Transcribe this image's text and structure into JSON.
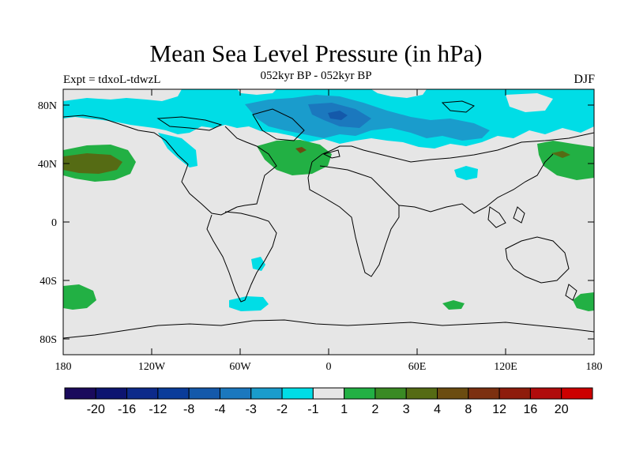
{
  "header": {
    "title": "Mean Sea Level Pressure (in hPa)",
    "experiment": "Expt = tdxoL-tdwzL",
    "subtitle": "052kyr BP - 052kyr BP",
    "season": "DJF"
  },
  "map": {
    "background_color": "#e6e6e6",
    "lat_ticks": [
      "80N",
      "40N",
      "0",
      "40S",
      "80S"
    ],
    "lon_ticks": [
      "180",
      "120W",
      "60W",
      "0",
      "60E",
      "120E",
      "180"
    ]
  },
  "colorbar": {
    "colors": [
      "#1a0a5c",
      "#0d1470",
      "#0d2a8a",
      "#0a3c9a",
      "#1459aa",
      "#1b78be",
      "#1a9ccc",
      "#00dde6",
      "#e6e6e6",
      "#22b044",
      "#3a8a24",
      "#556b14",
      "#6b4c10",
      "#7c3010",
      "#8e1c0c",
      "#b00c0c",
      "#cc0000"
    ],
    "labels": [
      "-20",
      "-16",
      "-12",
      "-8",
      "-4",
      "-3",
      "-2",
      "-1",
      "1",
      "2",
      "3",
      "4",
      "8",
      "12",
      "16",
      "20"
    ]
  }
}
